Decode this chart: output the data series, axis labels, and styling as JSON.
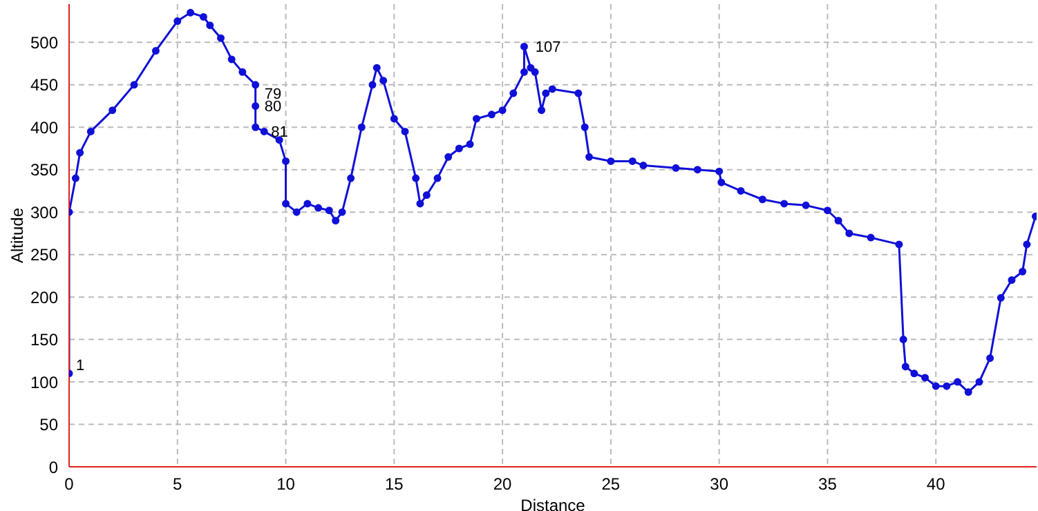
{
  "chart_data": {
    "type": "line",
    "xlabel": "Distance",
    "ylabel": "Altitude",
    "x": [
      0,
      0,
      0.3,
      0.5,
      1,
      2,
      3,
      4,
      5,
      5.6,
      6.2,
      6.5,
      7,
      7.5,
      8,
      8.6,
      8.6,
      8.6,
      9,
      9.7,
      10,
      10,
      10.5,
      11,
      11.5,
      12,
      12.3,
      12.6,
      13,
      13.5,
      14,
      14.2,
      14.5,
      15,
      15.5,
      16,
      16.2,
      16.5,
      17,
      17.5,
      18,
      18.5,
      18.8,
      19.5,
      20,
      20.5,
      21,
      21,
      21.3,
      21.5,
      21.8,
      22,
      22.3,
      23.5,
      23.8,
      24,
      25,
      26,
      26.5,
      28,
      29,
      30,
      30.1,
      31,
      32,
      33,
      34,
      35,
      35.5,
      36,
      37,
      38.3,
      38.5,
      38.6,
      39,
      39.5,
      40,
      40.5,
      41,
      41.5,
      42,
      42.5,
      43,
      43.5,
      44,
      44.2,
      44.6
    ],
    "series": [
      {
        "color": "#1010d8",
        "values": [
          110,
          300,
          340,
          370,
          395,
          420,
          450,
          490,
          525,
          535,
          530,
          520,
          505,
          480,
          465,
          450,
          425,
          400,
          395,
          385,
          360,
          310,
          300,
          310,
          305,
          302,
          290,
          300,
          340,
          400,
          450,
          470,
          455,
          410,
          395,
          340,
          310,
          320,
          340,
          365,
          375,
          380,
          410,
          415,
          420,
          440,
          465,
          495,
          470,
          465,
          420,
          440,
          445,
          440,
          400,
          365,
          360,
          360,
          355,
          352,
          350,
          348,
          335,
          325,
          315,
          310,
          308,
          302,
          290,
          275,
          270,
          262,
          150,
          118,
          110,
          105,
          95,
          95,
          100,
          88,
          100,
          128,
          199,
          220,
          230,
          262,
          295
        ]
      }
    ],
    "xlim": [
      0,
      44.65
    ],
    "xticks": [
      0,
      5,
      10,
      15,
      20,
      25,
      30,
      35,
      40
    ],
    "ylim": [
      0,
      545
    ],
    "yticks": [
      0,
      50,
      100,
      150,
      200,
      250,
      300,
      350,
      400,
      450,
      500
    ],
    "grid": true,
    "marker": "circle",
    "line_style": "solid",
    "annotations": [
      {
        "text": "1",
        "x": 0,
        "y": 120
      },
      {
        "text": "79",
        "x": 8.7,
        "y": 440
      },
      {
        "text": "80",
        "x": 8.7,
        "y": 425
      },
      {
        "text": "81",
        "x": 9,
        "y": 395
      },
      {
        "text": "107",
        "x": 21.2,
        "y": 495
      }
    ]
  }
}
